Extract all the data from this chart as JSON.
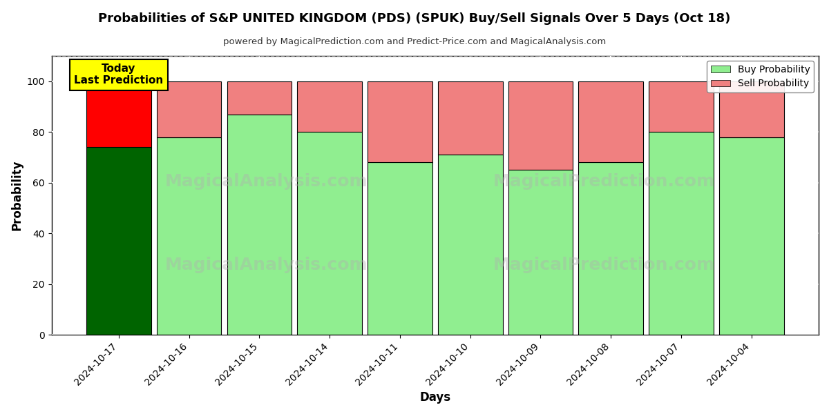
{
  "title": "Probabilities of S&P UNITED KINGDOM (PDS) (SPUK) Buy/Sell Signals Over 5 Days (Oct 18)",
  "subtitle": "powered by MagicalPrediction.com and Predict-Price.com and MagicalAnalysis.com",
  "xlabel": "Days",
  "ylabel": "Probability",
  "dates": [
    "2024-10-17",
    "2024-10-16",
    "2024-10-15",
    "2024-10-14",
    "2024-10-11",
    "2024-10-10",
    "2024-10-09",
    "2024-10-08",
    "2024-10-07",
    "2024-10-04"
  ],
  "buy_values": [
    74,
    78,
    87,
    80,
    68,
    71,
    65,
    68,
    80,
    78
  ],
  "sell_values": [
    26,
    22,
    13,
    20,
    32,
    29,
    35,
    32,
    20,
    22
  ],
  "today_bar_buy_color": "#006400",
  "today_bar_sell_color": "#FF0000",
  "regular_bar_buy_color": "#90EE90",
  "regular_bar_sell_color": "#F08080",
  "today_label_bg": "#FFFF00",
  "today_label_text": "Today\nLast Prediction",
  "legend_buy_color": "#90EE90",
  "legend_sell_color": "#F08080",
  "ylim": [
    0,
    110
  ],
  "yticks": [
    0,
    20,
    40,
    60,
    80,
    100
  ],
  "dashed_line_y": 110,
  "background_color": "#ffffff",
  "plot_bg_color": "#ffffff",
  "watermark_left": "MagicalAnalysis.com",
  "watermark_right": "MagicalPrediction.com",
  "grid_color": "#ffffff",
  "figsize": [
    12,
    6
  ]
}
